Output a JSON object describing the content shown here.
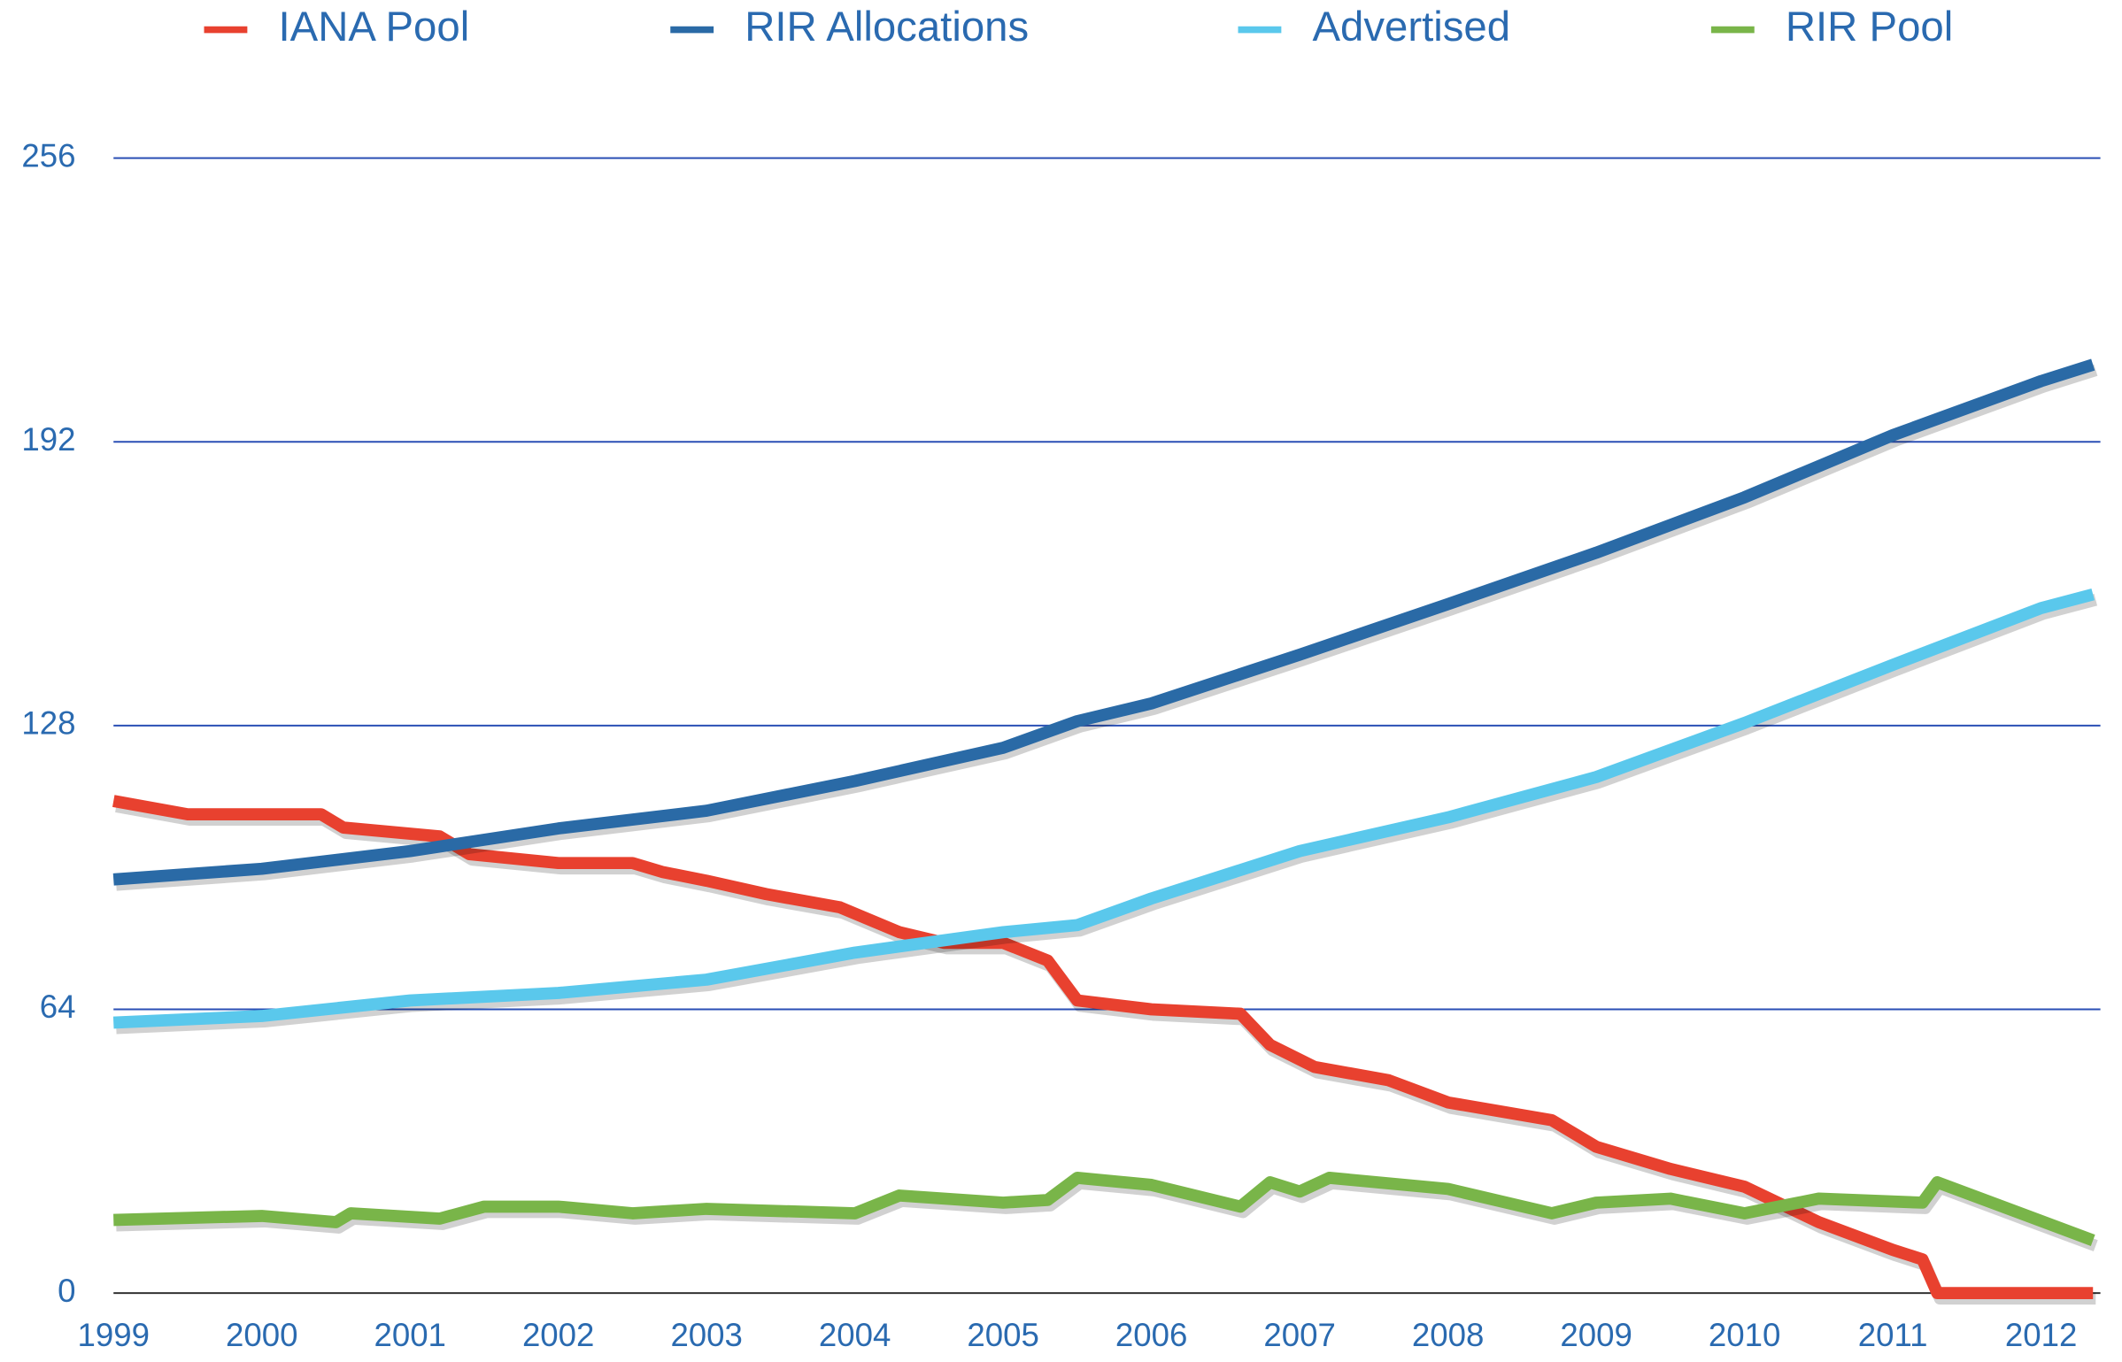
{
  "chart_data": {
    "type": "line",
    "xlim": [
      1999,
      2012.4
    ],
    "xticks": [
      1999,
      2000,
      2001,
      2002,
      2003,
      2004,
      2005,
      2006,
      2007,
      2008,
      2009,
      2010,
      2011,
      2012
    ],
    "ylim": [
      0,
      256
    ],
    "yticks": [
      0,
      64,
      128,
      192,
      256
    ],
    "grid": true,
    "legend": "top",
    "series": [
      {
        "name": "IANA Pool",
        "color": "#e8412f",
        "x": [
          1999,
          1999.5,
          2000.4,
          2000.55,
          2001.2,
          2001.4,
          2002,
          2002.5,
          2002.7,
          2003,
          2003.4,
          2003.9,
          2004.3,
          2004.6,
          2005,
          2005.3,
          2005.5,
          2006,
          2006.6,
          2006.8,
          2007.1,
          2007.6,
          2008,
          2008.7,
          2009,
          2009.5,
          2010,
          2010.5,
          2011,
          2011.2,
          2011.3,
          2012.35
        ],
        "values": [
          111,
          108,
          108,
          105,
          103,
          99,
          97,
          97,
          95,
          93,
          90,
          87,
          81.4,
          79,
          79,
          75,
          66,
          64,
          63,
          56,
          51,
          48,
          43,
          39,
          33,
          28,
          24,
          16,
          9.75,
          7.6,
          0,
          0
        ]
      },
      {
        "name": "RIR Allocations",
        "color": "#2a6aa6",
        "x": [
          1999,
          2000,
          2001,
          2002,
          2003,
          2004,
          2005,
          2005.5,
          2006,
          2007,
          2008,
          2009,
          2010,
          2011,
          2012,
          2012.35
        ],
        "values": [
          93.3,
          95.7,
          99.7,
          104.8,
          108.8,
          115.5,
          123,
          129,
          133,
          144,
          155.4,
          167,
          179.5,
          193.5,
          205.7,
          209.4
        ]
      },
      {
        "name": "Advertised",
        "color": "#5ac8ec",
        "x": [
          1999,
          2000,
          2001,
          2002,
          2003,
          2004,
          2005,
          2005.5,
          2006,
          2007,
          2008,
          2009,
          2010,
          2011,
          2012,
          2012.35
        ],
        "values": [
          61,
          62.5,
          66,
          67.7,
          70.7,
          76.8,
          81.4,
          83,
          89,
          99.7,
          107.3,
          116.4,
          128.6,
          141.7,
          154.5,
          157.6
        ]
      },
      {
        "name": "RIR Pool",
        "color": "#79b549",
        "x": [
          1999,
          2000,
          2000.5,
          2000.6,
          2001.2,
          2001.5,
          2002,
          2002.5,
          2003,
          2004,
          2004.3,
          2005,
          2005.3,
          2005.5,
          2006,
          2006.6,
          2006.8,
          2007,
          2007.2,
          2008,
          2008.7,
          2009,
          2009.5,
          2010,
          2010.5,
          2011.2,
          2011.3,
          2012.35
        ],
        "values": [
          16.5,
          17.4,
          16,
          18,
          16.8,
          19.5,
          19.5,
          18,
          19,
          18,
          22,
          20.4,
          21,
          26,
          24.4,
          19.5,
          25,
          22.9,
          26,
          23.5,
          18,
          20.4,
          21.3,
          18,
          21.3,
          20.4,
          25,
          11.9
        ]
      }
    ]
  }
}
